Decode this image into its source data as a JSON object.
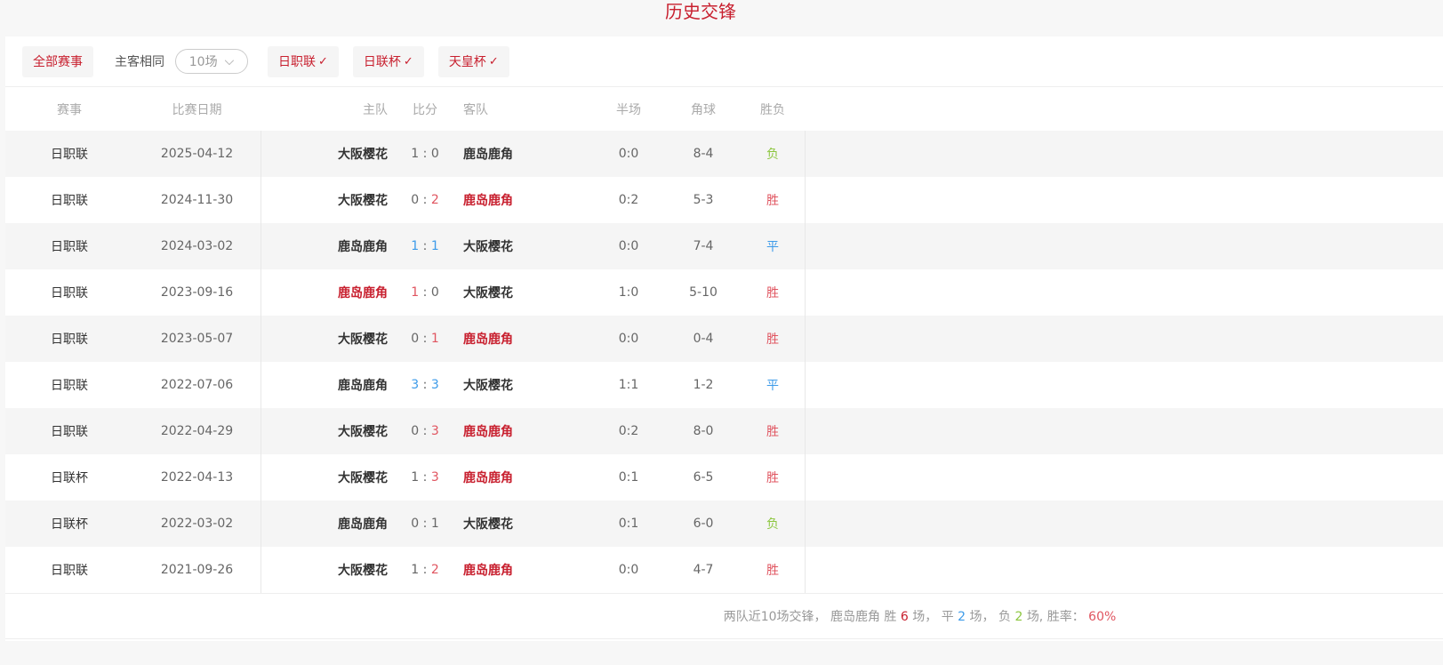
{
  "title": "历史交锋",
  "filters": {
    "all": "全部赛事",
    "same_home": "主客相同",
    "count_select": "10场",
    "leagues": [
      "日职联",
      "日联杯",
      "天皇杯"
    ]
  },
  "headers": {
    "league": "赛事",
    "date": "比赛日期",
    "home": "主队",
    "score": "比分",
    "away": "客队",
    "half": "半场",
    "corner": "角球",
    "result": "胜负"
  },
  "colors": {
    "win": "#c8202f",
    "draw": "#3d9be9",
    "loss": "#8cc63f"
  },
  "rows": [
    {
      "league": "日职联",
      "date": "2025-04-12",
      "home": "大阪樱花",
      "hs": "1",
      "as": "0",
      "away": "鹿岛鹿角",
      "half": "0:0",
      "corner": "8-4",
      "result": "负",
      "hl": "none"
    },
    {
      "league": "日职联",
      "date": "2024-11-30",
      "home": "大阪樱花",
      "hs": "0",
      "as": "2",
      "away": "鹿岛鹿角",
      "half": "0:2",
      "corner": "5-3",
      "result": "胜",
      "hl": "away"
    },
    {
      "league": "日职联",
      "date": "2024-03-02",
      "home": "鹿岛鹿角",
      "hs": "1",
      "as": "1",
      "away": "大阪樱花",
      "half": "0:0",
      "corner": "7-4",
      "result": "平",
      "hl": "draw"
    },
    {
      "league": "日职联",
      "date": "2023-09-16",
      "home": "鹿岛鹿角",
      "hs": "1",
      "as": "0",
      "away": "大阪樱花",
      "half": "1:0",
      "corner": "5-10",
      "result": "胜",
      "hl": "home"
    },
    {
      "league": "日职联",
      "date": "2023-05-07",
      "home": "大阪樱花",
      "hs": "0",
      "as": "1",
      "away": "鹿岛鹿角",
      "half": "0:0",
      "corner": "0-4",
      "result": "胜",
      "hl": "away"
    },
    {
      "league": "日职联",
      "date": "2022-07-06",
      "home": "鹿岛鹿角",
      "hs": "3",
      "as": "3",
      "away": "大阪樱花",
      "half": "1:1",
      "corner": "1-2",
      "result": "平",
      "hl": "draw"
    },
    {
      "league": "日职联",
      "date": "2022-04-29",
      "home": "大阪樱花",
      "hs": "0",
      "as": "3",
      "away": "鹿岛鹿角",
      "half": "0:2",
      "corner": "8-0",
      "result": "胜",
      "hl": "away"
    },
    {
      "league": "日联杯",
      "date": "2022-04-13",
      "home": "大阪樱花",
      "hs": "1",
      "as": "3",
      "away": "鹿岛鹿角",
      "half": "0:1",
      "corner": "6-5",
      "result": "胜",
      "hl": "away"
    },
    {
      "league": "日联杯",
      "date": "2022-03-02",
      "home": "鹿岛鹿角",
      "hs": "0",
      "as": "1",
      "away": "大阪樱花",
      "half": "0:1",
      "corner": "6-0",
      "result": "负",
      "hl": "none"
    },
    {
      "league": "日职联",
      "date": "2021-09-26",
      "home": "大阪樱花",
      "hs": "1",
      "as": "2",
      "away": "鹿岛鹿角",
      "half": "0:0",
      "corner": "4-7",
      "result": "胜",
      "hl": "away"
    }
  ],
  "summary": {
    "prefix": "两队近10场交锋，  鹿岛鹿角 胜",
    "wins": "6",
    "t1": "场，  平",
    "draws": "2",
    "t2": "场，  负",
    "losses": "2",
    "t3": "场, 胜率：",
    "rate": "60%"
  }
}
